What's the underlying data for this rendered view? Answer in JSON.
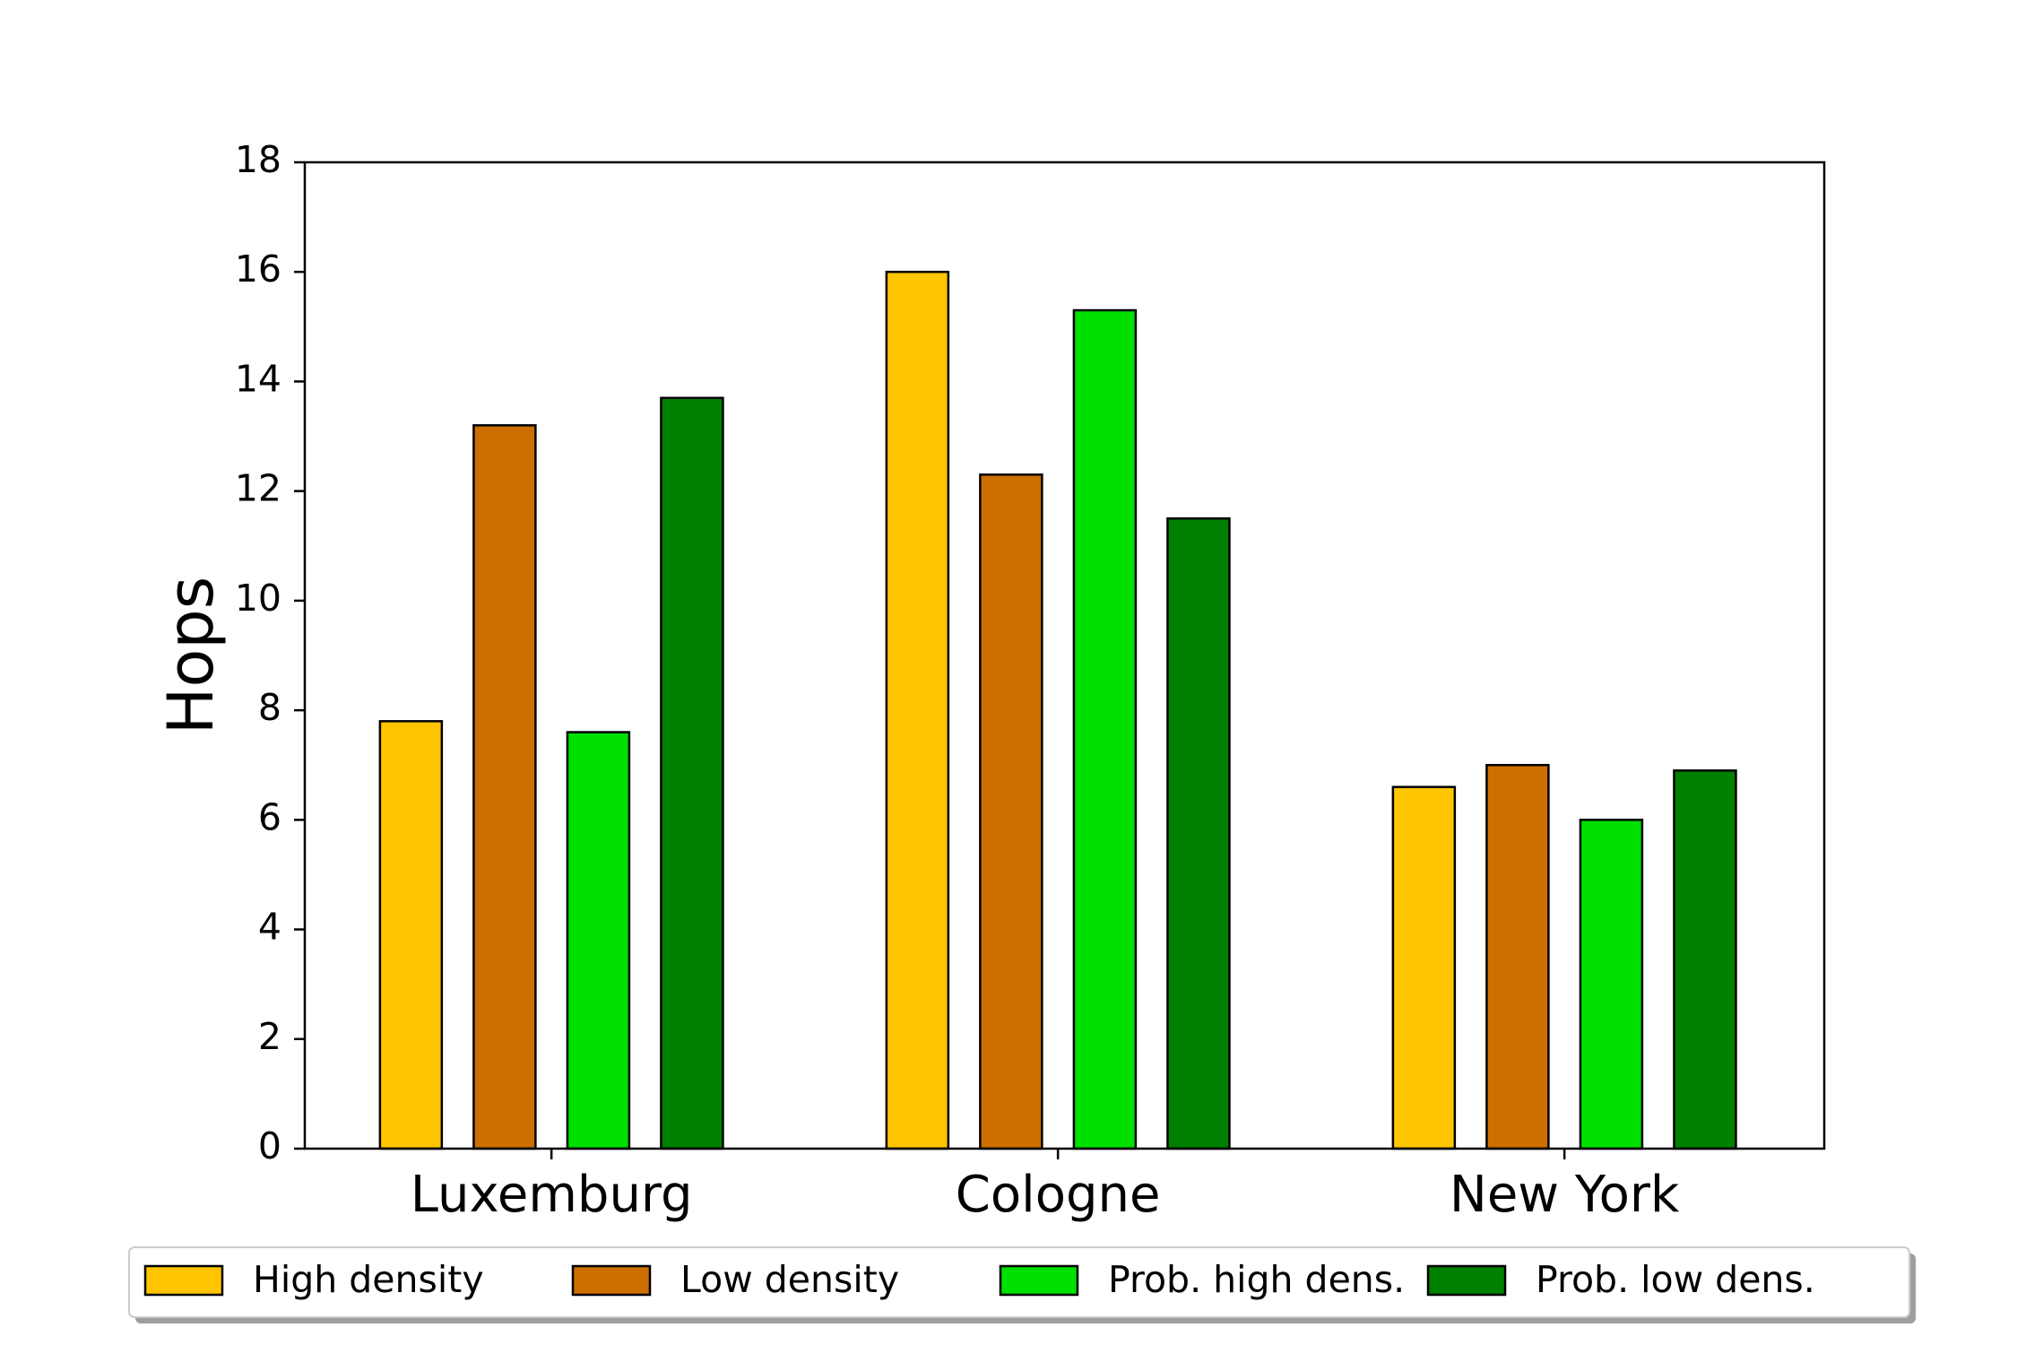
{
  "chart_data": {
    "type": "bar",
    "title": "",
    "xlabel": "",
    "ylabel": "Hops",
    "ylim": [
      0,
      18
    ],
    "yticks": [
      "0",
      "2",
      "4",
      "6",
      "8",
      "10",
      "12",
      "14",
      "16",
      "18"
    ],
    "categories": [
      "Luxemburg",
      "Cologne",
      "New York"
    ],
    "series": [
      {
        "name": "High density",
        "color": "#FFC500",
        "values": [
          7.8,
          16.0,
          6.6
        ]
      },
      {
        "name": "Low density",
        "color": "#CC6F00",
        "values": [
          13.2,
          12.3,
          7.0
        ]
      },
      {
        "name": "Prob. high dens.",
        "color": "#00E000",
        "values": [
          7.6,
          15.3,
          6.0
        ]
      },
      {
        "name": "Prob. low dens.",
        "color": "#008000",
        "values": [
          13.7,
          11.5,
          6.9
        ]
      }
    ],
    "grid": false,
    "legend": "bottom"
  }
}
